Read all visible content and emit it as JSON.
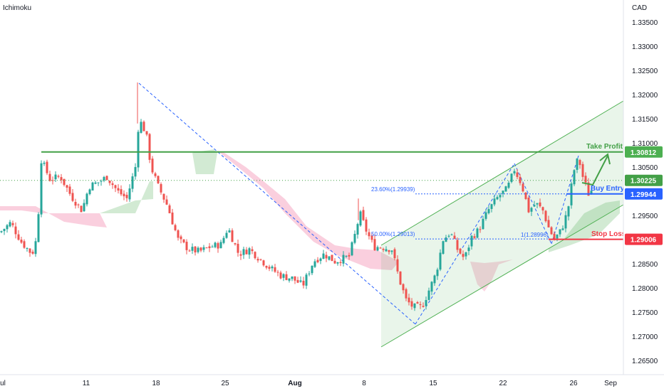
{
  "indicator_label": "Ichimoku",
  "currency_label": "CAD",
  "chart_data": {
    "type": "candlestick",
    "title": "",
    "ylim": [
      1.2625,
      1.338
    ],
    "y_ticks": [
      "1.33500",
      "1.33000",
      "1.32500",
      "1.32000",
      "1.31500",
      "1.31000",
      "1.30500",
      "1.30000",
      "1.29500",
      "1.29000",
      "1.28500",
      "1.28000",
      "1.27500",
      "1.27000",
      "1.26500"
    ],
    "y_tick_values": [
      1.335,
      1.33,
      1.325,
      1.32,
      1.315,
      1.31,
      1.305,
      1.3,
      1.295,
      1.29,
      1.285,
      1.28,
      1.275,
      1.27,
      1.265
    ],
    "x_ticks": [
      "ul",
      "11",
      "18",
      "25",
      "Aug",
      "8",
      "15",
      "22",
      "26",
      "Sep"
    ],
    "price_tags": [
      {
        "name": "take-profit-tag",
        "label": "1.30812",
        "value": 1.30812,
        "color": "#4caf50"
      },
      {
        "name": "current-price-tag",
        "label": "1.30225",
        "value": 1.30225,
        "color": "#43a047"
      },
      {
        "name": "buy-entry-tag",
        "label": "1.29944",
        "value": 1.29944,
        "color": "#2962ff"
      },
      {
        "name": "stop-loss-tag",
        "label": "1.29006",
        "value": 1.29006,
        "color": "#f23645"
      }
    ],
    "annotations": [
      {
        "name": "take-profit-label",
        "text": "Take Profit",
        "color": "#43a047"
      },
      {
        "name": "buy-entry-label",
        "text": "Buy Entry",
        "color": "#2962ff"
      },
      {
        "name": "stop-loss-label",
        "text": "Stop Loss",
        "color": "#f23645"
      }
    ],
    "fib_labels": [
      {
        "name": "fib-236-label",
        "text": "23.60%(1.29939)",
        "value": 1.29939
      },
      {
        "name": "fib-50-label",
        "text": "50.00%(1.29013)",
        "value": 1.29013
      },
      {
        "name": "fib-1-label",
        "text": "1(1.28996)",
        "value": 1.28996
      }
    ],
    "colors": {
      "up": "#26a69a",
      "down": "#ef5350",
      "channel": "#4caf50",
      "cloud_bull": "#a5d6a7",
      "cloud_bear": "#f8bbd0",
      "fib": "#2962ff"
    }
  }
}
